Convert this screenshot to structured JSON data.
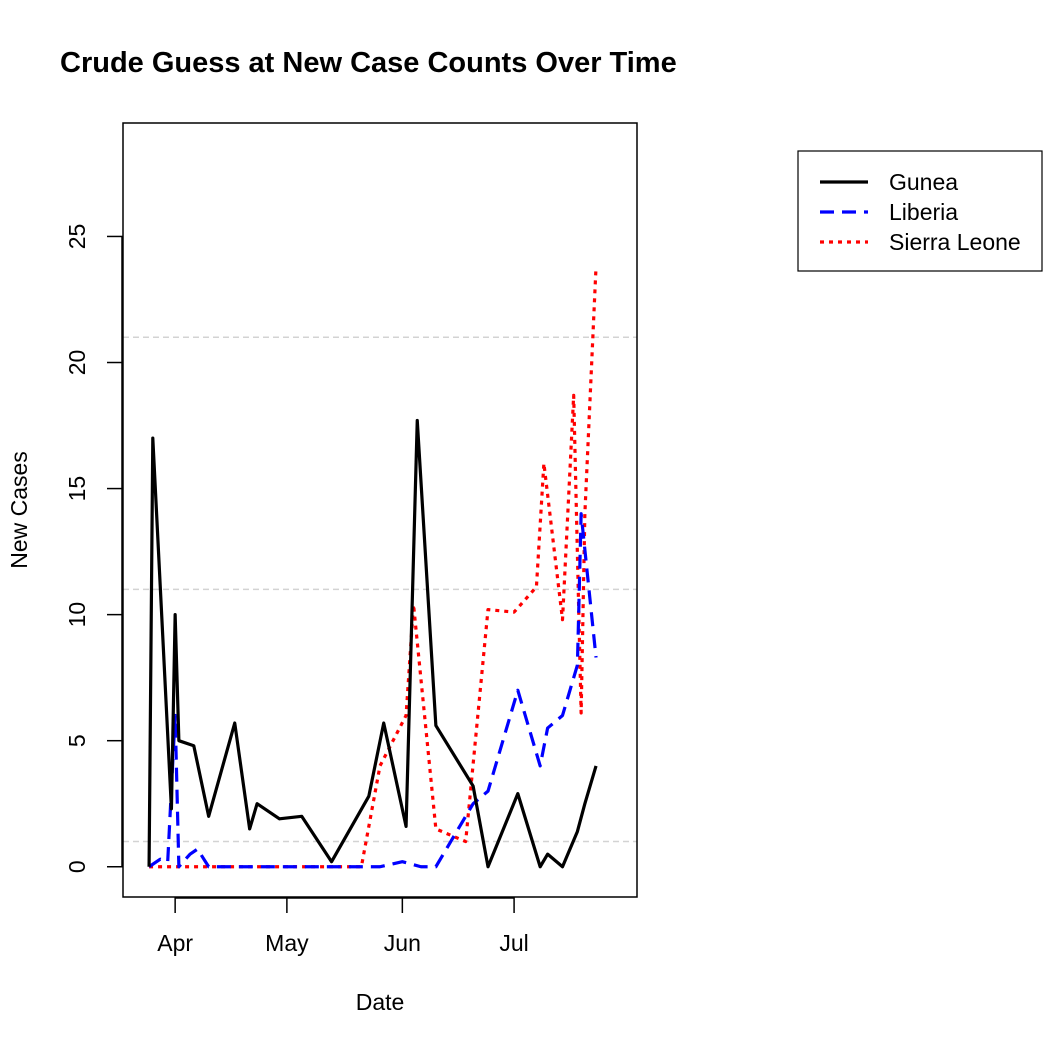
{
  "chart_data": {
    "type": "line",
    "title": "Crude Guess at New Case Counts Over Time",
    "xlabel": "Date",
    "ylabel": "New Cases",
    "x_range": [
      "2014-03-18",
      "2014-08-03"
    ],
    "ylim": [
      -1.2,
      29.5
    ],
    "x_ticks": [
      {
        "date": "2014-04-01",
        "label": "Apr"
      },
      {
        "date": "2014-05-01",
        "label": "May"
      },
      {
        "date": "2014-06-01",
        "label": "Jun"
      },
      {
        "date": "2014-07-01",
        "label": "Jul"
      }
    ],
    "y_ticks": [
      0,
      5,
      10,
      15,
      20,
      25
    ],
    "hlines": [
      1,
      11,
      21
    ],
    "legend_position": "top-right, outside plot",
    "series": [
      {
        "name": "Gunea",
        "color": "#000000",
        "dash": "solid",
        "points": [
          [
            "2014-03-25",
            0
          ],
          [
            "2014-03-26",
            17
          ],
          [
            "2014-03-31",
            2.3
          ],
          [
            "2014-04-01",
            10
          ],
          [
            "2014-04-02",
            5
          ],
          [
            "2014-04-06",
            4.8
          ],
          [
            "2014-04-10",
            2
          ],
          [
            "2014-04-17",
            5.7
          ],
          [
            "2014-04-21",
            1.5
          ],
          [
            "2014-04-23",
            2.5
          ],
          [
            "2014-04-29",
            1.9
          ],
          [
            "2014-05-05",
            2
          ],
          [
            "2014-05-13",
            0.2
          ],
          [
            "2014-05-23",
            2.8
          ],
          [
            "2014-05-27",
            5.7
          ],
          [
            "2014-06-02",
            1.6
          ],
          [
            "2014-06-05",
            17.7
          ],
          [
            "2014-06-10",
            5.6
          ],
          [
            "2014-06-20",
            3.2
          ],
          [
            "2014-06-24",
            0
          ],
          [
            "2014-07-02",
            2.9
          ],
          [
            "2014-07-08",
            0
          ],
          [
            "2014-07-10",
            0.5
          ],
          [
            "2014-07-14",
            0
          ],
          [
            "2014-07-18",
            1.4
          ],
          [
            "2014-07-20",
            2.5
          ],
          [
            "2014-07-23",
            4
          ]
        ]
      },
      {
        "name": "Liberia",
        "color": "#0000ff",
        "dash": "dashed",
        "points": [
          [
            "2014-03-25",
            0
          ],
          [
            "2014-03-28",
            0.3
          ],
          [
            "2014-03-30",
            0.2
          ],
          [
            "2014-04-01",
            6
          ],
          [
            "2014-04-02",
            0
          ],
          [
            "2014-04-05",
            0.5
          ],
          [
            "2014-04-07",
            0.7
          ],
          [
            "2014-04-10",
            0
          ],
          [
            "2014-05-26",
            0
          ],
          [
            "2014-06-01",
            0.2
          ],
          [
            "2014-06-06",
            0
          ],
          [
            "2014-06-10",
            0
          ],
          [
            "2014-06-20",
            2.5
          ],
          [
            "2014-06-24",
            3
          ],
          [
            "2014-07-02",
            7
          ],
          [
            "2014-07-08",
            4
          ],
          [
            "2014-07-10",
            5.5
          ],
          [
            "2014-07-14",
            6
          ],
          [
            "2014-07-18",
            8
          ],
          [
            "2014-07-19",
            14
          ],
          [
            "2014-07-23",
            8.3
          ]
        ]
      },
      {
        "name": "Sierra Leone",
        "color": "#ff0000",
        "dash": "dotted",
        "points": [
          [
            "2014-03-25",
            0
          ],
          [
            "2014-05-21",
            0
          ],
          [
            "2014-05-26",
            4
          ],
          [
            "2014-06-02",
            6
          ],
          [
            "2014-06-04",
            10.4
          ],
          [
            "2014-06-10",
            1.5
          ],
          [
            "2014-06-18",
            1
          ],
          [
            "2014-06-24",
            10.2
          ],
          [
            "2014-07-01",
            10.1
          ],
          [
            "2014-07-07",
            11.1
          ],
          [
            "2014-07-09",
            16
          ],
          [
            "2014-07-14",
            9.8
          ],
          [
            "2014-07-17",
            18.7
          ],
          [
            "2014-07-19",
            6.1
          ],
          [
            "2014-07-20",
            14
          ],
          [
            "2014-07-23",
            23.8
          ]
        ]
      }
    ]
  }
}
